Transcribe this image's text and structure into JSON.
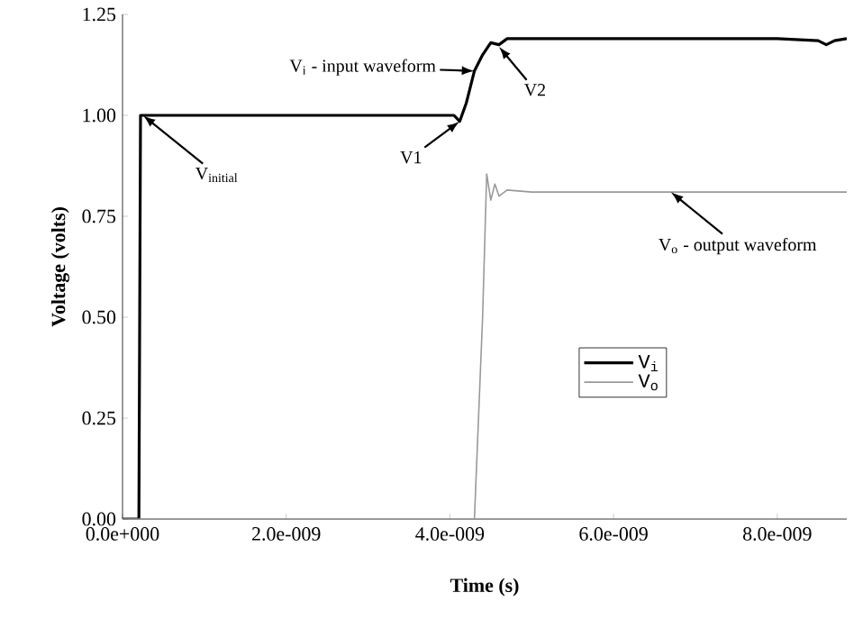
{
  "chart_data": {
    "type": "line",
    "xlabel": "Time (s)",
    "ylabel": "Voltage (volts)",
    "xlim": [
      0,
      8.85e-09
    ],
    "ylim": [
      0,
      1.25
    ],
    "xticks": [
      {
        "value": 0,
        "label": "0.0e+000"
      },
      {
        "value": 2e-09,
        "label": "2.0e-009"
      },
      {
        "value": 4e-09,
        "label": "4.0e-009"
      },
      {
        "value": 6e-09,
        "label": "6.0e-009"
      },
      {
        "value": 8e-09,
        "label": "8.0e-009"
      }
    ],
    "yticks": [
      {
        "value": 0,
        "label": "0.00"
      },
      {
        "value": 0.25,
        "label": "0.25"
      },
      {
        "value": 0.5,
        "label": "0.50"
      },
      {
        "value": 0.75,
        "label": "0.75"
      },
      {
        "value": 1.0,
        "label": "1.00"
      },
      {
        "value": 1.25,
        "label": "1.25"
      }
    ],
    "legend": "right",
    "grid": false,
    "marker": "none",
    "series": [
      {
        "name": "V$_{i}$",
        "color": "#000000",
        "x": [
          0,
          2e-10,
          2.2e-10,
          4.05e-09,
          4.12e-09,
          4.2e-09,
          4.3e-09,
          4.4e-09,
          4.5e-09,
          4.6e-09,
          4.7e-09,
          5e-09,
          8e-09,
          8.5e-09,
          8.6e-09,
          8.7e-09,
          8.85e-09
        ],
        "values": [
          0,
          0,
          1.0,
          1.0,
          0.985,
          1.03,
          1.11,
          1.15,
          1.18,
          1.175,
          1.19,
          1.19,
          1.19,
          1.185,
          1.175,
          1.185,
          1.19
        ]
      },
      {
        "name": "V$_{o}$",
        "color": "#999999",
        "x": [
          0,
          4.3e-09,
          4.4e-09,
          4.45e-09,
          4.5e-09,
          4.55e-09,
          4.6e-09,
          4.7e-09,
          5e-09,
          8.85e-09
        ],
        "values": [
          0,
          0,
          0.5,
          0.855,
          0.79,
          0.83,
          0.8,
          0.815,
          0.81,
          0.81
        ]
      }
    ],
    "annotations": [
      {
        "text": "V$_{i}$ - input waveform",
        "x": 4.3e-09,
        "y": 1.11
      },
      {
        "text": "V$_{initial}$",
        "x": 2.5e-10,
        "y": 1.0
      },
      {
        "text": "V1",
        "x": 4.12e-09,
        "y": 0.985
      },
      {
        "text": "V2",
        "x": 4.6e-09,
        "y": 1.17
      },
      {
        "text": "V$_{o}$ - output waveform",
        "x": 6.7e-09,
        "y": 0.81
      }
    ]
  }
}
